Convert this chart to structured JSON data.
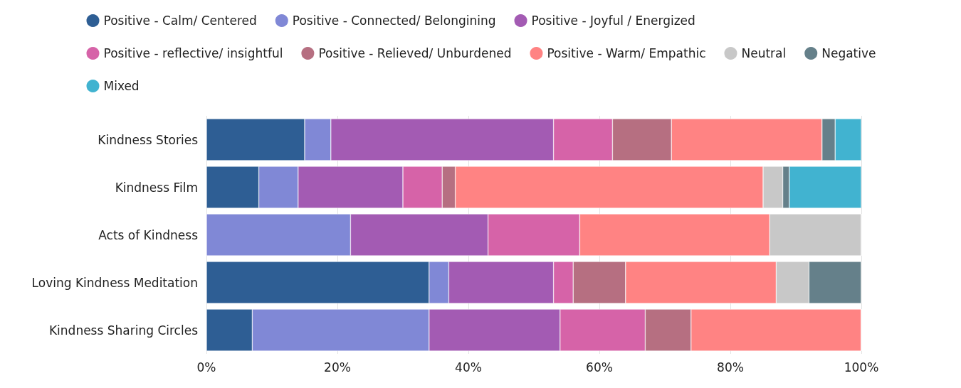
{
  "chart_data": {
    "type": "bar",
    "orientation": "horizontal",
    "stacked": true,
    "categories": [
      "Kindness Stories",
      "Kindness Film",
      "Acts of Kindness",
      "Loving Kindness Meditation",
      "Kindness Sharing Circles"
    ],
    "series": [
      {
        "name": "Positive - Calm/ Centered",
        "color": "#2e5e94",
        "values": [
          15,
          8,
          0,
          34,
          7
        ]
      },
      {
        "name": "Positive - Connected/ Belongining",
        "color": "#8088d6",
        "values": [
          4,
          6,
          22,
          3,
          27
        ]
      },
      {
        "name": "Positive - Joyful / Energized",
        "color": "#a35bb3",
        "values": [
          34,
          16,
          21,
          16,
          20
        ]
      },
      {
        "name": "Positive - reflective/ insightful",
        "color": "#d663a8",
        "values": [
          9,
          6,
          14,
          3,
          13
        ]
      },
      {
        "name": "Positive - Relieved/ Unburdened",
        "color": "#b66f81",
        "values": [
          9,
          2,
          0,
          8,
          7
        ]
      },
      {
        "name": "Positive - Warm/ Empathic",
        "color": "#ff8383",
        "values": [
          23,
          47,
          29,
          23,
          26
        ]
      },
      {
        "name": "Neutral",
        "color": "#c8c8c8",
        "values": [
          0,
          3,
          14,
          5,
          0
        ]
      },
      {
        "name": "Negative",
        "color": "#65808a",
        "values": [
          2,
          1,
          0,
          8,
          0
        ]
      },
      {
        "name": "Mixed",
        "color": "#41b3d0",
        "values": [
          4,
          11,
          0,
          0,
          0
        ]
      }
    ],
    "xlim": [
      0,
      100
    ],
    "xticks": [
      {
        "value": 0,
        "label": "0%"
      },
      {
        "value": 20,
        "label": "20%"
      },
      {
        "value": 40,
        "label": "40%"
      },
      {
        "value": 60,
        "label": "60%"
      },
      {
        "value": 80,
        "label": "80%"
      },
      {
        "value": 100,
        "label": "100%"
      }
    ],
    "grid": "x",
    "legend": "top"
  }
}
